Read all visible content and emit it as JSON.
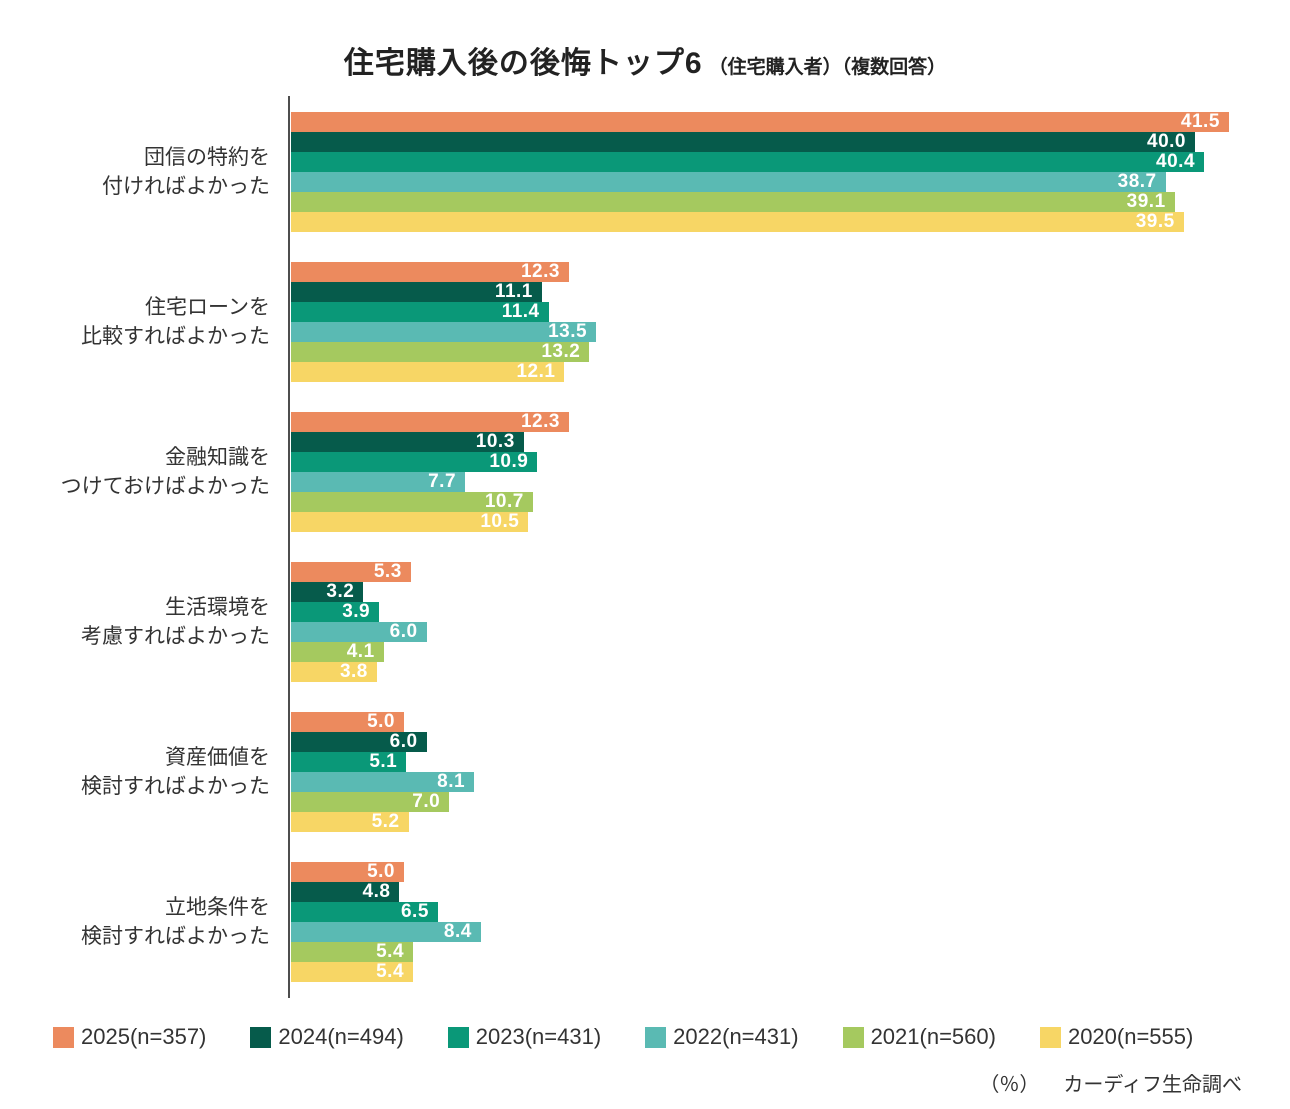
{
  "title": {
    "main": "住宅購入後の後悔トップ6",
    "suffix": "（住宅購入者）（複数回答）"
  },
  "footnote": {
    "unit": "（％）",
    "source": "カーディフ生命調べ"
  },
  "chart_data": {
    "type": "bar",
    "orientation": "horizontal",
    "title": "住宅購入後の後悔トップ6（住宅購入者）（複数回答）",
    "unit": "%",
    "xlim": [
      0,
      45
    ],
    "value_labels": true,
    "legend_position": "bottom",
    "categories": [
      "団信の特約を付ければよかった",
      "住宅ローンを比較すればよかった",
      "金融知識をつけておけばよかった",
      "生活環境を考慮すればよかった",
      "資産価値を検討すればよかった",
      "立地条件を検討すればよかった"
    ],
    "category_lines": [
      [
        "団信の特約を",
        "付ければよかった"
      ],
      [
        "住宅ローンを",
        "比較すればよかった"
      ],
      [
        "金融知識を",
        "つけておけばよかった"
      ],
      [
        "生活環境を",
        "考慮すればよかった"
      ],
      [
        "資産価値を",
        "検討すればよかった"
      ],
      [
        "立地条件を",
        "検討すればよかった"
      ]
    ],
    "series": [
      {
        "name": "2025(n=357)",
        "color": "#EC8A5E",
        "values": [
          41.5,
          12.3,
          12.3,
          5.3,
          5.0,
          5.0
        ]
      },
      {
        "name": "2024(n=494)",
        "color": "#065B4B",
        "values": [
          40.0,
          11.1,
          10.3,
          3.2,
          6.0,
          4.8
        ]
      },
      {
        "name": "2023(n=431)",
        "color": "#0A9878",
        "values": [
          40.4,
          11.4,
          10.9,
          3.9,
          5.1,
          6.5
        ]
      },
      {
        "name": "2022(n=431)",
        "color": "#5ABAB3",
        "values": [
          38.7,
          13.5,
          7.7,
          6.0,
          8.1,
          8.4
        ]
      },
      {
        "name": "2021(n=560)",
        "color": "#A5C95F",
        "values": [
          39.1,
          13.2,
          10.7,
          4.1,
          7.0,
          5.4
        ]
      },
      {
        "name": "2020(n=555)",
        "color": "#F7D665",
        "values": [
          39.5,
          12.1,
          10.5,
          3.8,
          5.2,
          5.4
        ]
      }
    ]
  }
}
